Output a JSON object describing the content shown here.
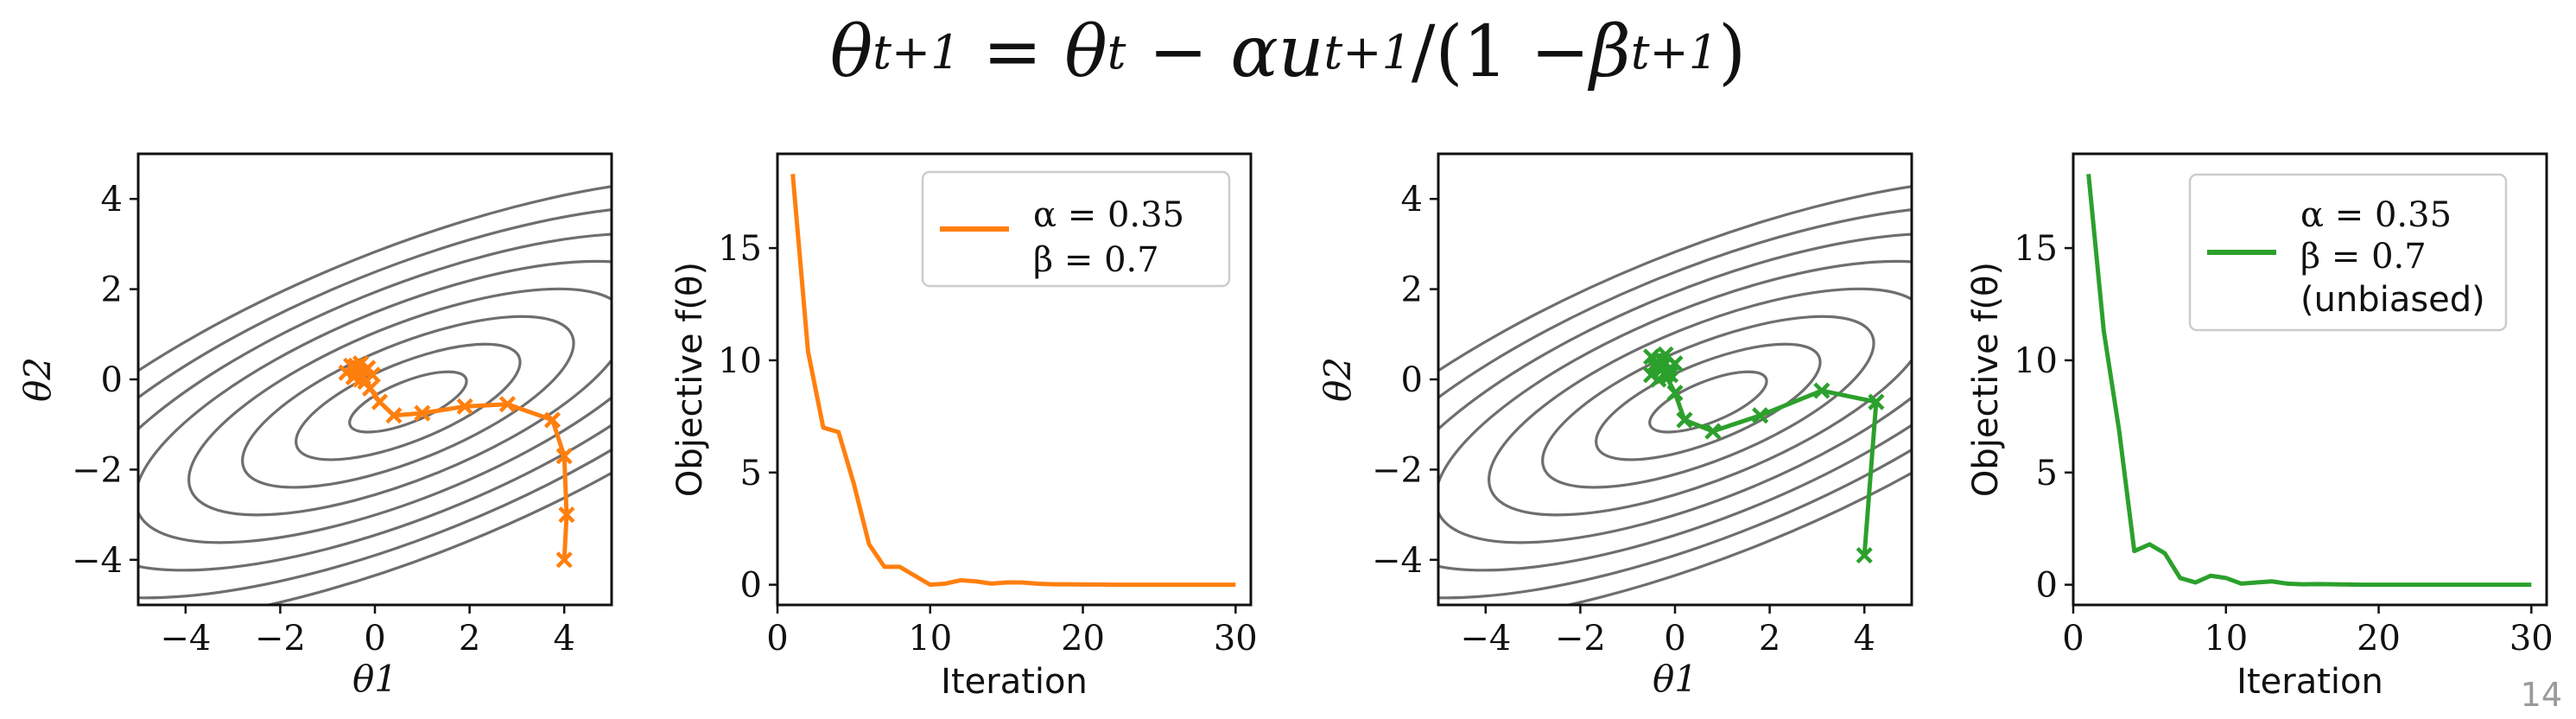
{
  "title": {
    "lhs": "θ",
    "lhs_sub": "t+1",
    "eq": "=",
    "t1": "θ",
    "t1_sub": "t",
    "minus1": "−",
    "alpha": "α",
    "u": "u",
    "u_sub": "t+1",
    "div": "/(1 − ",
    "beta": "β",
    "beta_sup": "t+1",
    "close": ")"
  },
  "slide_number": "14",
  "colors": {
    "orange": "#ff7f0e",
    "green": "#2ca02c",
    "contour": "#6e6e6e"
  },
  "chart_data": [
    {
      "type": "contour-trajectory",
      "id": "p1",
      "xlabel": "θ1",
      "ylabel": "θ2",
      "xlim": [
        -5,
        5
      ],
      "ylim": [
        -5,
        5
      ],
      "xticks": [
        -4,
        -2,
        0,
        2,
        4
      ],
      "yticks": [
        -4,
        -2,
        0,
        2,
        4
      ],
      "xtick_labels": [
        "−4",
        "−2",
        "0",
        "2",
        "4"
      ],
      "ytick_labels": [
        "−4",
        "−2",
        "0",
        "2",
        "4"
      ],
      "contour_levels": [
        2.4,
        4.6,
        6.8,
        9.0,
        11.2,
        13.4,
        15.6,
        17.8
      ],
      "color": "#ff7f0e",
      "path": [
        [
          4.0,
          -4.0
        ],
        [
          4.05,
          -3.0
        ],
        [
          4.0,
          -1.7
        ],
        [
          3.75,
          -0.9
        ],
        [
          2.8,
          -0.55
        ],
        [
          1.9,
          -0.6
        ],
        [
          1.0,
          -0.75
        ],
        [
          0.4,
          -0.8
        ],
        [
          0.1,
          -0.5
        ],
        [
          -0.1,
          -0.2
        ],
        [
          -0.3,
          0.0
        ],
        [
          -0.4,
          0.15
        ],
        [
          -0.5,
          0.3
        ],
        [
          -0.3,
          0.35
        ],
        [
          -0.15,
          0.25
        ],
        [
          -0.05,
          0.1
        ],
        [
          -0.2,
          -0.05
        ],
        [
          -0.45,
          0.05
        ],
        [
          -0.6,
          0.15
        ],
        [
          -0.4,
          0.3
        ],
        [
          -0.2,
          0.2
        ],
        [
          -0.25,
          0.05
        ],
        [
          -0.4,
          0.1
        ],
        [
          -0.35,
          0.2
        ]
      ]
    },
    {
      "type": "line",
      "id": "p2",
      "xlabel": "Iteration",
      "ylabel": "Objective f(θ)",
      "xlim": [
        0,
        31
      ],
      "ylim": [
        -0.9,
        19.2
      ],
      "xticks": [
        0,
        10,
        20,
        30
      ],
      "yticks": [
        0,
        5,
        10,
        15
      ],
      "xtick_labels": [
        "0",
        "10",
        "20",
        "30"
      ],
      "ytick_labels": [
        "0",
        "5",
        "10",
        "15"
      ],
      "color": "#ff7f0e",
      "x": [
        1,
        2,
        3,
        4,
        5,
        6,
        7,
        8,
        9,
        10,
        11,
        12,
        13,
        14,
        15,
        16,
        17,
        18,
        19,
        20,
        21,
        22,
        23,
        24,
        25,
        26,
        27,
        28,
        29,
        30
      ],
      "y": [
        18.3,
        10.4,
        7.0,
        6.8,
        4.5,
        1.8,
        0.8,
        0.8,
        0.4,
        0.0,
        0.05,
        0.2,
        0.15,
        0.05,
        0.1,
        0.1,
        0.05,
        0.02,
        0.02,
        0.01,
        0.01,
        0,
        0,
        0,
        0,
        0,
        0,
        0,
        0,
        0
      ],
      "legend": {
        "line1": "α = 0.35",
        "line2": "β = 0.7"
      }
    },
    {
      "type": "contour-trajectory",
      "id": "p3",
      "xlabel": "θ1",
      "ylabel": "θ2",
      "xlim": [
        -5,
        5
      ],
      "ylim": [
        -5,
        5
      ],
      "xticks": [
        -4,
        -2,
        0,
        2,
        4
      ],
      "yticks": [
        -4,
        -2,
        0,
        2,
        4
      ],
      "xtick_labels": [
        "−4",
        "−2",
        "0",
        "2",
        "4"
      ],
      "ytick_labels": [
        "−4",
        "−2",
        "0",
        "2",
        "4"
      ],
      "contour_levels": [
        2.4,
        4.6,
        6.8,
        9.0,
        11.2,
        13.4,
        15.6,
        17.8
      ],
      "color": "#2ca02c",
      "path": [
        [
          4.0,
          -3.9
        ],
        [
          4.25,
          -0.5
        ],
        [
          3.1,
          -0.25
        ],
        [
          1.8,
          -0.8
        ],
        [
          0.8,
          -1.15
        ],
        [
          0.2,
          -0.9
        ],
        [
          0.0,
          -0.3
        ],
        [
          -0.2,
          0.1
        ],
        [
          -0.4,
          0.35
        ],
        [
          -0.5,
          0.5
        ],
        [
          -0.2,
          0.55
        ],
        [
          0.0,
          0.35
        ],
        [
          -0.1,
          0.1
        ],
        [
          -0.35,
          0.0
        ],
        [
          -0.5,
          0.1
        ],
        [
          -0.45,
          0.3
        ],
        [
          -0.25,
          0.4
        ],
        [
          -0.1,
          0.25
        ],
        [
          -0.2,
          0.1
        ],
        [
          -0.3,
          0.2
        ],
        [
          -0.25,
          0.3
        ],
        [
          -0.15,
          0.2
        ]
      ]
    },
    {
      "type": "line",
      "id": "p4",
      "xlabel": "Iteration",
      "ylabel": "Objective f(θ)",
      "xlim": [
        0,
        31
      ],
      "ylim": [
        -0.9,
        19.2
      ],
      "xticks": [
        0,
        10,
        20,
        30
      ],
      "yticks": [
        0,
        5,
        10,
        15
      ],
      "xtick_labels": [
        "0",
        "10",
        "20",
        "30"
      ],
      "ytick_labels": [
        "0",
        "5",
        "10",
        "15"
      ],
      "color": "#2ca02c",
      "x": [
        1,
        2,
        3,
        4,
        5,
        6,
        7,
        8,
        9,
        10,
        11,
        12,
        13,
        14,
        15,
        16,
        17,
        18,
        19,
        20,
        21,
        22,
        23,
        24,
        25,
        26,
        27,
        28,
        29,
        30
      ],
      "y": [
        18.3,
        11.3,
        6.9,
        1.5,
        1.8,
        1.4,
        0.3,
        0.1,
        0.4,
        0.3,
        0.05,
        0.1,
        0.15,
        0.05,
        0.02,
        0.03,
        0.02,
        0.01,
        0,
        0,
        0,
        0,
        0,
        0,
        0,
        0,
        0,
        0,
        0,
        0
      ],
      "legend": {
        "line1": "α = 0.35",
        "line2": "β = 0.7",
        "line3": "(unbiased)"
      }
    }
  ]
}
